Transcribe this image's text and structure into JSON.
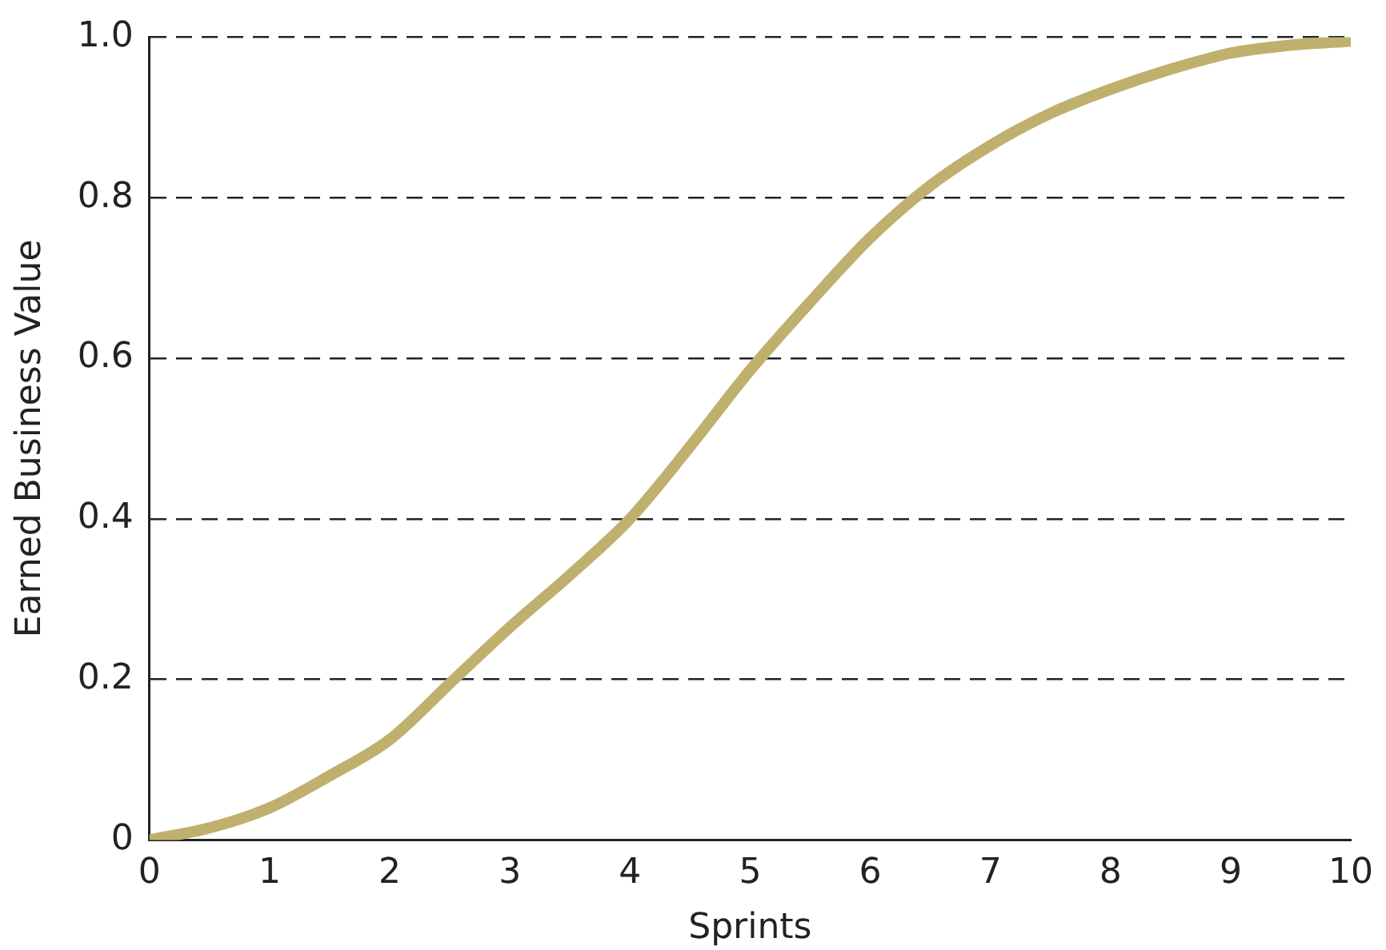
{
  "chart_data": {
    "type": "line",
    "xlabel": "Sprints",
    "ylabel": "Earned Business Value",
    "x": [
      0,
      0.5,
      1,
      1.5,
      2,
      2.5,
      3,
      3.5,
      4,
      4.5,
      5,
      5.5,
      6,
      6.5,
      7,
      7.5,
      8,
      8.5,
      9,
      9.5,
      10
    ],
    "series": [
      {
        "color": "#bfb06e",
        "values": [
          0,
          0.015,
          0.04,
          0.08,
          0.125,
          0.195,
          0.265,
          0.33,
          0.4,
          0.49,
          0.585,
          0.67,
          0.75,
          0.815,
          0.865,
          0.905,
          0.935,
          0.96,
          0.98,
          0.99,
          0.995
        ]
      }
    ],
    "xlim": [
      0,
      10
    ],
    "xticks": [
      0,
      1,
      2,
      3,
      4,
      5,
      6,
      7,
      8,
      9,
      10
    ],
    "ylim": [
      0,
      1
    ],
    "yticks": [
      0,
      0.2,
      0.4,
      0.6,
      0.8,
      {
        "value": 1,
        "label": "1.0"
      }
    ],
    "grid": "y",
    "marker": "none",
    "legend": false
  }
}
